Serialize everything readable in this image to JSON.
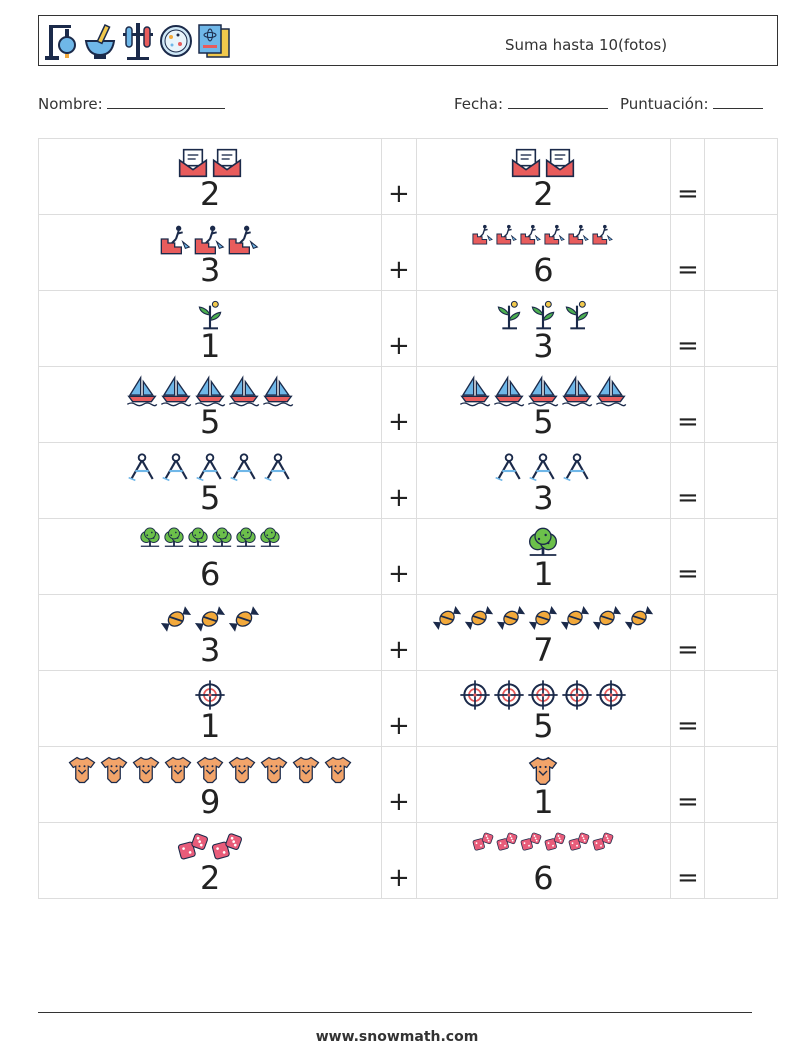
{
  "header": {
    "title": "Suma hasta 10(fotos)",
    "icons": [
      "lab-stand-flask-icon",
      "mortar-pestle-icon",
      "test-tubes-icon",
      "petri-dish-icon",
      "science-book-icon"
    ]
  },
  "info": {
    "name_label": "Nombre:",
    "date_label": "Fecha:",
    "score_label": "Puntuación:"
  },
  "operators": {
    "plus": "+",
    "equals": "="
  },
  "rows": [
    {
      "a": "2",
      "a_icon": "mail-icon",
      "b": "2",
      "b_icon": "mail-icon"
    },
    {
      "a": "3",
      "a_icon": "climber-icon",
      "b": "6",
      "b_icon": "climber-icon"
    },
    {
      "a": "1",
      "a_icon": "sprout-icon",
      "b": "3",
      "b_icon": "sprout-icon"
    },
    {
      "a": "5",
      "a_icon": "sailboat-icon",
      "b": "5",
      "b_icon": "sailboat-icon"
    },
    {
      "a": "5",
      "a_icon": "compass-icon",
      "b": "3",
      "b_icon": "compass-icon"
    },
    {
      "a": "6",
      "a_icon": "tree-icon",
      "b": "1",
      "b_icon": "tree-icon"
    },
    {
      "a": "3",
      "a_icon": "candy-icon",
      "b": "7",
      "b_icon": "candy-icon"
    },
    {
      "a": "1",
      "a_icon": "target-icon",
      "b": "5",
      "b_icon": "target-icon"
    },
    {
      "a": "9",
      "a_icon": "baby-onesie-icon",
      "b": "1",
      "b_icon": "baby-onesie-icon"
    },
    {
      "a": "2",
      "a_icon": "dice-icon",
      "b": "6",
      "b_icon": "dice-icon"
    }
  ],
  "footer": {
    "text": "www.snowmath.com"
  }
}
